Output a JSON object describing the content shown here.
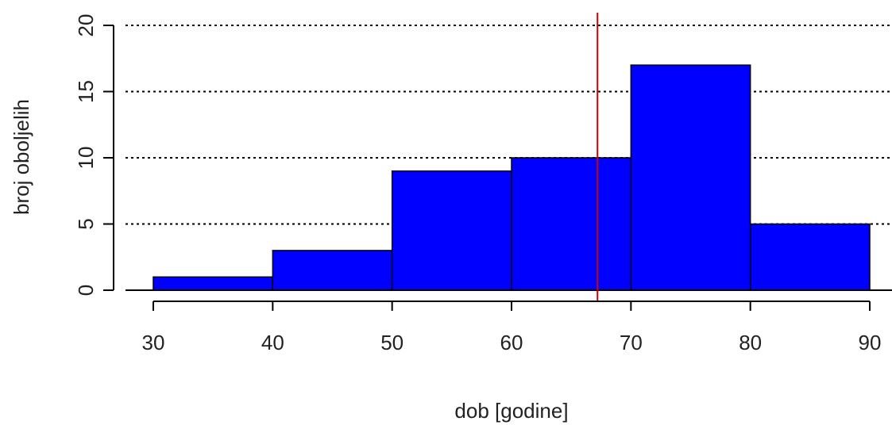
{
  "chart_data": {
    "type": "bar",
    "subtype": "histogram",
    "bins": [
      {
        "from": 30,
        "to": 40,
        "count": 1
      },
      {
        "from": 40,
        "to": 50,
        "count": 3
      },
      {
        "from": 50,
        "to": 60,
        "count": 9
      },
      {
        "from": 60,
        "to": 70,
        "count": 10
      },
      {
        "from": 70,
        "to": 80,
        "count": 17
      },
      {
        "from": 80,
        "to": 90,
        "count": 5
      }
    ],
    "xlabel": "dob [godine]",
    "ylabel": "broj oboljelih",
    "xlim": [
      30,
      90
    ],
    "ylim": [
      0,
      20
    ],
    "xticks": [
      30,
      40,
      50,
      60,
      70,
      80,
      90
    ],
    "yticks": [
      0,
      5,
      10,
      15,
      20
    ],
    "grid": "horizontal dotted at y ticks",
    "bar_color": "#0000ff",
    "bar_edge_color": "#000000",
    "reference_line": {
      "x": 67.2,
      "color": "#cc0000"
    }
  }
}
